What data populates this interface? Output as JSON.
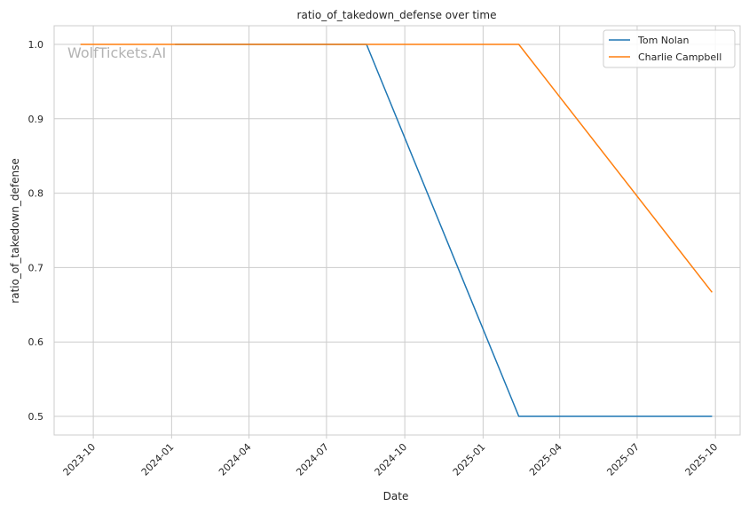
{
  "chart_data": {
    "type": "line",
    "title": "ratio_of_takedown_defense over time",
    "xlabel": "Date",
    "ylabel": "ratio_of_takedown_defense",
    "watermark": "WolfTickets.AI",
    "xlim": [
      "2023-08-16",
      "2025-10-30"
    ],
    "ylim": [
      0.475,
      1.025
    ],
    "x_ticks": [
      {
        "date": "2023-10-01",
        "label": "2023-10"
      },
      {
        "date": "2024-01-01",
        "label": "2024-01"
      },
      {
        "date": "2024-04-01",
        "label": "2024-04"
      },
      {
        "date": "2024-07-01",
        "label": "2024-07"
      },
      {
        "date": "2024-10-01",
        "label": "2024-10"
      },
      {
        "date": "2025-01-01",
        "label": "2025-01"
      },
      {
        "date": "2025-04-01",
        "label": "2025-04"
      },
      {
        "date": "2025-07-01",
        "label": "2025-07"
      },
      {
        "date": "2025-10-01",
        "label": "2025-10"
      }
    ],
    "y_ticks": [
      0.5,
      0.6,
      0.7,
      0.8,
      0.9,
      1.0
    ],
    "y_tick_labels": [
      "0.5",
      "0.6",
      "0.7",
      "0.8",
      "0.9",
      "1.0"
    ],
    "grid": true,
    "legend_position": "top-right",
    "series": [
      {
        "name": "Tom Nolan",
        "color": "#1f77b4",
        "points": [
          {
            "x": "2024-01-05",
            "y": 1.0
          },
          {
            "x": "2024-08-17",
            "y": 1.0
          },
          {
            "x": "2025-02-12",
            "y": 0.5
          },
          {
            "x": "2025-09-27",
            "y": 0.5
          }
        ]
      },
      {
        "name": "Charlie Campbell",
        "color": "#ff7f0e",
        "points": [
          {
            "x": "2023-09-16",
            "y": 1.0
          },
          {
            "x": "2025-02-12",
            "y": 1.0
          },
          {
            "x": "2025-09-27",
            "y": 0.6667
          }
        ]
      }
    ]
  }
}
